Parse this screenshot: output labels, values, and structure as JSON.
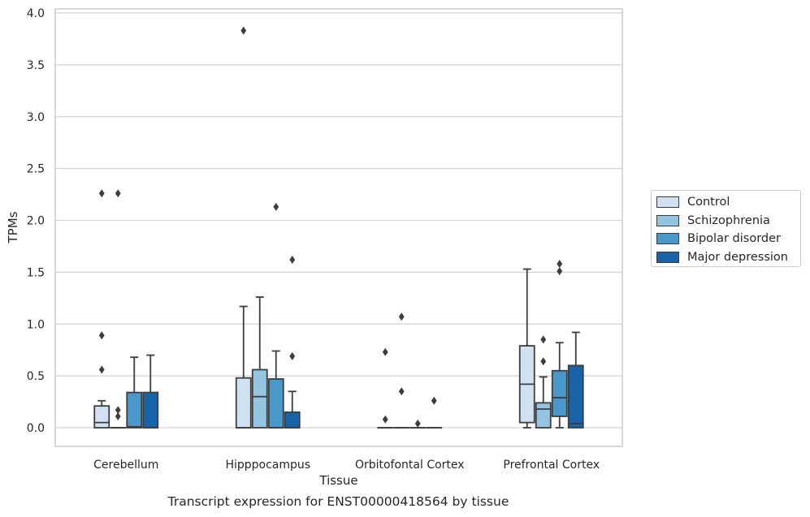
{
  "chart_data": {
    "type": "box",
    "title": "Transcript expression for ENST00000418564 by tissue",
    "xlabel": "Tissue",
    "ylabel": "TPMs",
    "ylim": [
      -0.18,
      4.03
    ],
    "yticks": [
      0.0,
      0.5,
      1.0,
      1.5,
      2.0,
      2.5,
      3.0,
      3.5,
      4.0
    ],
    "ytick_labels": [
      "0.0",
      "0.5",
      "1.0",
      "1.5",
      "2.0",
      "2.5",
      "3.0",
      "3.5",
      "4.0"
    ],
    "grid": "horizontal",
    "legend_position": "right",
    "categories": [
      "Cerebellum",
      "Hipppocampus",
      "Orbitofontal Cortex",
      "Prefrontal Cortex"
    ],
    "series": [
      {
        "name": "Control",
        "color": "#d0e1f2",
        "boxes": [
          {
            "whislo": 0.0,
            "q1": 0.0,
            "med": 0.05,
            "q3": 0.21,
            "whishi": 0.26,
            "fliers": [
              0.89,
              0.56,
              2.26
            ]
          },
          {
            "whislo": 0.0,
            "q1": 0.0,
            "med": 0.0,
            "q3": 0.48,
            "whishi": 1.17,
            "fliers": [
              3.83
            ]
          },
          {
            "whislo": 0.0,
            "q1": 0.0,
            "med": 0.0,
            "q3": 0.0,
            "whishi": 0.0,
            "fliers": [
              0.73,
              0.08
            ]
          },
          {
            "whislo": 0.0,
            "q1": 0.05,
            "med": 0.42,
            "q3": 0.79,
            "whishi": 1.53,
            "fliers": []
          }
        ]
      },
      {
        "name": "Schizophrenia",
        "color": "#94c4df",
        "boxes": [
          {
            "whislo": 0.0,
            "q1": 0.0,
            "med": 0.0,
            "q3": 0.0,
            "whishi": 0.0,
            "fliers": [
              2.26,
              0.17,
              0.11
            ]
          },
          {
            "whislo": 0.0,
            "q1": 0.0,
            "med": 0.3,
            "q3": 0.56,
            "whishi": 1.26,
            "fliers": []
          },
          {
            "whislo": 0.0,
            "q1": 0.0,
            "med": 0.0,
            "q3": 0.0,
            "whishi": 0.0,
            "fliers": [
              1.07,
              0.35
            ]
          },
          {
            "whislo": 0.0,
            "q1": 0.0,
            "med": 0.18,
            "q3": 0.24,
            "whishi": 0.49,
            "fliers": [
              0.85,
              0.64
            ]
          }
        ]
      },
      {
        "name": "Bipolar disorder",
        "color": "#4a98c9",
        "boxes": [
          {
            "whislo": 0.0,
            "q1": 0.0,
            "med": 0.01,
            "q3": 0.34,
            "whishi": 0.68,
            "fliers": []
          },
          {
            "whislo": 0.0,
            "q1": 0.0,
            "med": 0.0,
            "q3": 0.47,
            "whishi": 0.74,
            "fliers": [
              2.13
            ]
          },
          {
            "whislo": 0.0,
            "q1": 0.0,
            "med": 0.0,
            "q3": 0.0,
            "whishi": 0.0,
            "fliers": [
              0.04
            ]
          },
          {
            "whislo": 0.0,
            "q1": 0.11,
            "med": 0.29,
            "q3": 0.55,
            "whishi": 0.82,
            "fliers": [
              1.58,
              1.51
            ]
          }
        ]
      },
      {
        "name": "Major depression",
        "color": "#1764ab",
        "boxes": [
          {
            "whislo": 0.0,
            "q1": 0.0,
            "med": 0.0,
            "q3": 0.34,
            "whishi": 0.7,
            "fliers": []
          },
          {
            "whislo": 0.0,
            "q1": 0.0,
            "med": 0.0,
            "q3": 0.15,
            "whishi": 0.35,
            "fliers": [
              1.62,
              0.69
            ]
          },
          {
            "whislo": 0.0,
            "q1": 0.0,
            "med": 0.0,
            "q3": 0.0,
            "whishi": 0.0,
            "fliers": [
              0.26
            ]
          },
          {
            "whislo": 0.0,
            "q1": 0.0,
            "med": 0.04,
            "q3": 0.6,
            "whishi": 0.92,
            "fliers": []
          }
        ]
      }
    ]
  }
}
